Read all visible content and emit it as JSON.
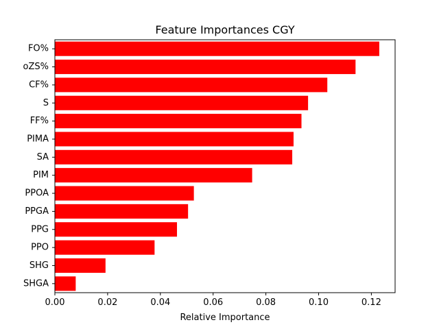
{
  "chart_data": {
    "type": "bar",
    "orientation": "horizontal",
    "title": "Feature Importances CGY",
    "xlabel": "Relative Importance",
    "ylabel": "",
    "xlim": [
      0,
      0.129
    ],
    "xticks": [
      0.0,
      0.02,
      0.04,
      0.06,
      0.08,
      0.1,
      0.12
    ],
    "xtick_labels": [
      "0.00",
      "0.02",
      "0.04",
      "0.06",
      "0.08",
      "0.10",
      "0.12"
    ],
    "grid": false,
    "legend": "none",
    "bar_color": "#ff0000",
    "categories": [
      "FO%",
      "oZS%",
      "CF%",
      "S",
      "FF%",
      "PIMA",
      "SA",
      "PIM",
      "PPOA",
      "PPGA",
      "PPG",
      "PPO",
      "SHG",
      "SHGA"
    ],
    "values": [
      0.123,
      0.114,
      0.1033,
      0.096,
      0.0935,
      0.0905,
      0.09,
      0.0748,
      0.0527,
      0.0505,
      0.0463,
      0.0378,
      0.0192,
      0.0079
    ]
  }
}
